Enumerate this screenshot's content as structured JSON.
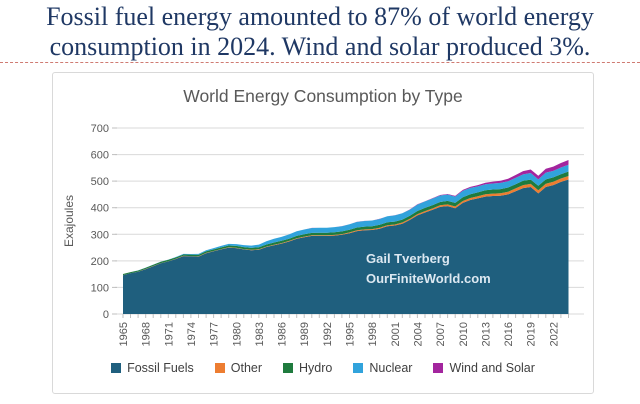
{
  "header": {
    "line1": "Fossil fuel energy amounted to 87% of world energy",
    "line2": "consumption in 2024. Wind and solar produced 3%.",
    "text_color": "#1F3864",
    "divider_color": "#CF7B72"
  },
  "chart_data": {
    "type": "area",
    "stacked": true,
    "title": "World Energy Consumption by Type",
    "xlabel": "",
    "ylabel": "Exajoules",
    "ylim": [
      0,
      700
    ],
    "yticks": [
      0,
      100,
      200,
      300,
      400,
      500,
      600,
      700
    ],
    "xtick_labels": [
      1965,
      1968,
      1971,
      1974,
      1977,
      1980,
      1983,
      1986,
      1989,
      1992,
      1995,
      1998,
      2001,
      2004,
      2007,
      2010,
      2013,
      2016,
      2019,
      2022
    ],
    "grid": "horizontal",
    "legend_position": "bottom",
    "annotations": [
      "Gail Tverberg",
      "OurFiniteWorld.com"
    ],
    "x": [
      1965,
      1966,
      1967,
      1968,
      1969,
      1970,
      1971,
      1972,
      1973,
      1974,
      1975,
      1976,
      1977,
      1978,
      1979,
      1980,
      1981,
      1982,
      1983,
      1984,
      1985,
      1986,
      1987,
      1988,
      1989,
      1990,
      1991,
      1992,
      1993,
      1994,
      1995,
      1996,
      1997,
      1998,
      1999,
      2000,
      2001,
      2002,
      2003,
      2004,
      2005,
      2006,
      2007,
      2008,
      2009,
      2010,
      2011,
      2012,
      2013,
      2014,
      2015,
      2016,
      2017,
      2018,
      2019,
      2020,
      2021,
      2022,
      2023,
      2024
    ],
    "series": [
      {
        "name": "Fossil Fuels",
        "color": "#1F5F7E",
        "values": [
          146,
          153,
          159,
          169,
          180,
          191,
          198,
          207,
          218,
          217,
          216,
          229,
          236,
          243,
          250,
          248,
          243,
          240,
          242,
          252,
          259,
          265,
          273,
          283,
          289,
          294,
          294,
          294,
          295,
          298,
          304,
          312,
          315,
          316,
          321,
          330,
          333,
          340,
          354,
          371,
          382,
          392,
          403,
          406,
          398,
          418,
          429,
          435,
          442,
          444,
          445,
          450,
          462,
          474,
          478,
          454,
          478,
          485,
          497,
          506
        ]
      },
      {
        "name": "Other",
        "color": "#ED7D31",
        "values": [
          0.5,
          0.5,
          0.6,
          0.6,
          0.7,
          0.7,
          0.8,
          0.8,
          0.9,
          0.9,
          1.0,
          1.0,
          1.1,
          1.1,
          1.2,
          1.3,
          1.4,
          1.5,
          1.6,
          1.7,
          1.8,
          1.9,
          2.0,
          2.1,
          2.2,
          2.3,
          2.4,
          2.5,
          2.7,
          2.8,
          3.0,
          3.1,
          3.3,
          3.4,
          3.6,
          3.8,
          4.0,
          4.2,
          4.5,
          4.8,
          5.1,
          5.5,
          5.9,
          6.3,
          6.7,
          7.2,
          7.7,
          8.2,
          8.7,
          9.2,
          9.7,
          10.2,
          10.7,
          11.2,
          11.7,
          11.9,
          12.3,
          12.7,
          13.1,
          13.5
        ]
      },
      {
        "name": "Hydro",
        "color": "#1F7B3E",
        "values": [
          3.9,
          4.1,
          4.2,
          4.4,
          4.6,
          4.8,
          5.0,
          5.1,
          5.2,
          5.6,
          5.8,
          5.9,
          6.1,
          6.5,
          6.7,
          7.0,
          7.2,
          7.4,
          7.7,
          8.0,
          8.2,
          8.4,
          8.5,
          8.7,
          8.8,
          9.1,
          9.2,
          9.3,
          9.8,
          9.9,
          10.3,
          10.6,
          10.7,
          10.8,
          11.0,
          11.3,
          10.9,
          11.2,
          11.3,
          11.8,
          12.1,
          12.5,
          12.6,
          13.2,
          13.3,
          13.9,
          14.1,
          14.6,
          14.9,
          15.2,
          15.3,
          15.7,
          15.8,
          16.0,
          16.1,
          16.5,
          16.4,
          16.4,
          16.2,
          16.8
        ]
      },
      {
        "name": "Nuclear",
        "color": "#31A3DC",
        "values": [
          0.1,
          0.2,
          0.3,
          0.5,
          0.6,
          0.8,
          1.1,
          1.5,
          1.9,
          2.4,
          3.4,
          4.0,
          4.9,
          5.7,
          6.1,
          6.7,
          7.8,
          8.5,
          9.8,
          11.9,
          14.1,
          14.9,
          16.1,
          17.3,
          17.9,
          18.4,
          18.9,
          19.0,
          19.4,
          19.8,
          20.4,
          21.0,
          21.0,
          21.5,
          22.1,
          22.5,
          23.0,
          23.4,
          23.2,
          24.2,
          24.4,
          24.7,
          24.5,
          24.2,
          23.8,
          24.6,
          23.6,
          22.3,
          22.4,
          22.8,
          23.2,
          23.6,
          23.8,
          24.3,
          24.9,
          24.3,
          25.3,
          24.5,
          24.9,
          25.3
        ]
      },
      {
        "name": "Wind and Solar",
        "color": "#A3259E",
        "values": [
          0,
          0,
          0,
          0,
          0,
          0,
          0,
          0,
          0,
          0,
          0,
          0,
          0,
          0,
          0,
          0,
          0,
          0,
          0,
          0,
          0,
          0,
          0,
          0,
          0,
          0.1,
          0.1,
          0.1,
          0.1,
          0.2,
          0.2,
          0.2,
          0.3,
          0.3,
          0.4,
          0.4,
          0.5,
          0.6,
          0.8,
          0.9,
          1.1,
          1.4,
          1.7,
          2.1,
          2.6,
          3.2,
          4.0,
          4.9,
          6.0,
          7.1,
          8.3,
          9.6,
          11.0,
          12.2,
          13.0,
          13.8,
          14.9,
          16.0,
          17.0,
          18.0
        ]
      }
    ]
  }
}
